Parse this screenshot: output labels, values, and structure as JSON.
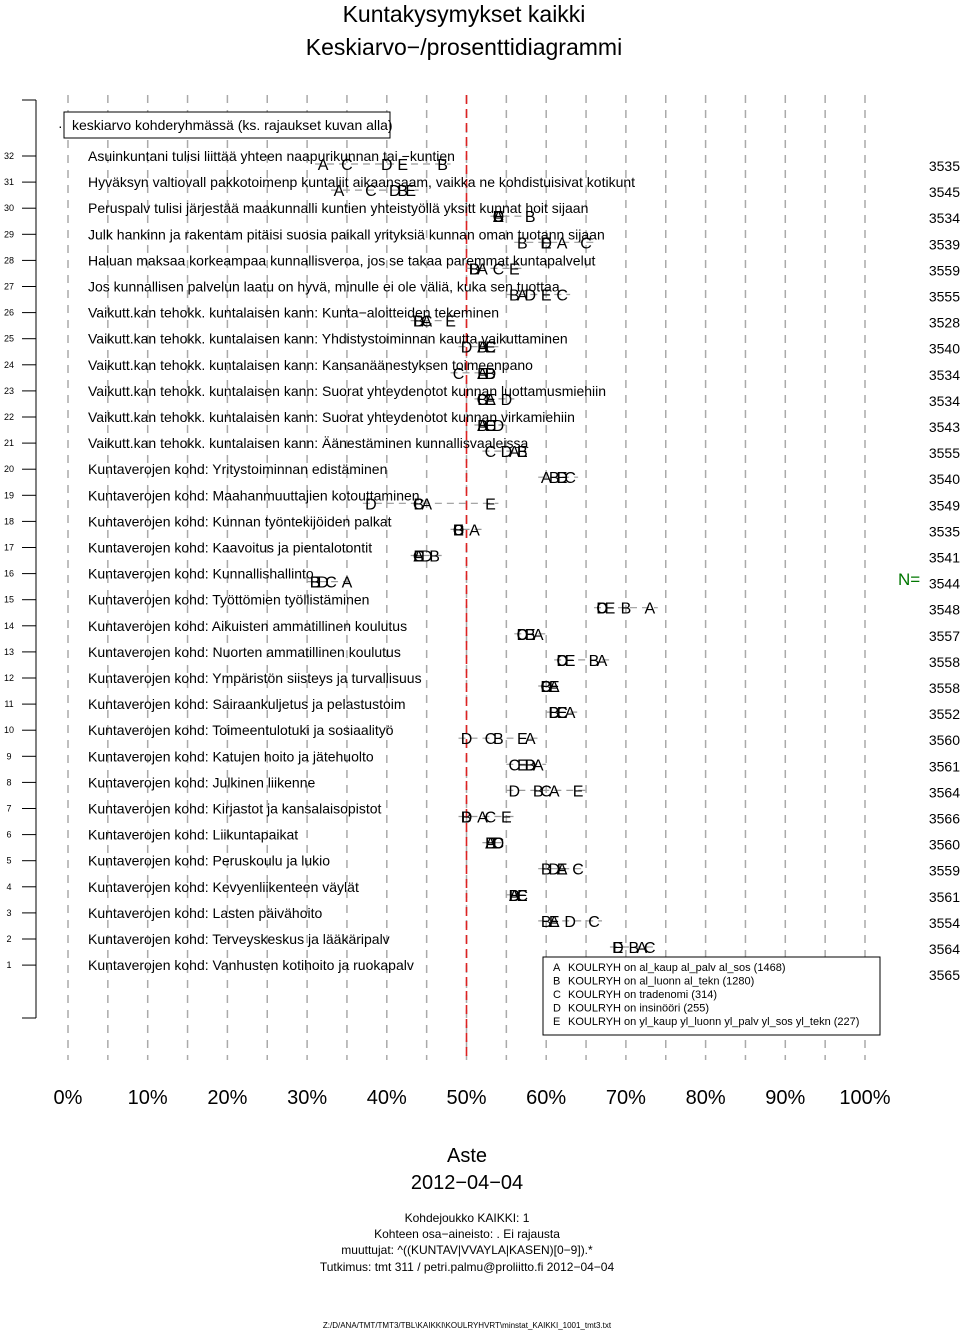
{
  "title": [
    "Kuntakysymykset kaikki",
    "Keskiarvo−/prosenttidiagrammi"
  ],
  "note": "keskiarvo kohderyhmässä (ks. rajaukset kuvan alla)",
  "note_marker": "·",
  "n_label": "N=",
  "colors": {
    "midline": "#dd2222",
    "n_label": "#007700",
    "grid": "#aaaaaa",
    "series_line": "#999999"
  },
  "x_ticks": [
    "0%",
    "10%",
    "20%",
    "30%",
    "40%",
    "50%",
    "60%",
    "70%",
    "80%",
    "90%",
    "100%"
  ],
  "xlabel": [
    "Aste",
    "2012−04−04"
  ],
  "footer": [
    "Kohdejoukko KAIKKI: 1",
    "Kohteen osa−aineisto: . Ei rajausta",
    "muuttujat: ^((KUNTAV|VVAYLA|KASEN)[0−9]).*",
    "Tutkimus: tmt 311 / petri.palmu@proliitto.fi 2012−04−04"
  ],
  "filepath": "Z:/D/ANA/TMT/TMT3/TBL\\KAIKKI\\KOULRYHVRT\\minstat_KAIKKI_1001_tmt3.txt",
  "chart_data": {
    "type": "scatter",
    "x_range": [
      0,
      100
    ],
    "x_unit": "%",
    "reference_line": 50,
    "legend_position": "bottom-right",
    "legend": [
      {
        "key": "A",
        "label": "KOULRYH on al_kaup al_palv al_sos (1468)"
      },
      {
        "key": "B",
        "label": "KOULRYH on al_luonn al_tekn (1280)"
      },
      {
        "key": "C",
        "label": "KOULRYH on tradenomi (314)"
      },
      {
        "key": "D",
        "label": "KOULRYH on insinööri (255)"
      },
      {
        "key": "E",
        "label": "KOULRYH on yl_kaup yl_luonn yl_palv yl_sos yl_tekn (227)"
      }
    ],
    "rows": [
      {
        "num": 32,
        "label": "Asuinkuntani tulisi liittää yhteen naapurikunnan tai −kuntien",
        "n": 3535,
        "A": 32,
        "B": 47,
        "C": 35,
        "D": 40,
        "E": 42
      },
      {
        "num": 31,
        "label": "Hyväksyn valtiovall pakkotoimenp kuntaliit aikaansaam, vaikka ne kohdistuisivat kotikunt",
        "n": 3545,
        "A": 34,
        "B": 42,
        "C": 38,
        "D": 41,
        "E": 43
      },
      {
        "num": 30,
        "label": "Peruspalv tulisi järjestää maakunnalli kuntien yhteistyöllä yksitt kunnat hoit sijaan",
        "n": 3534,
        "A": 54,
        "B": 58,
        "C": 54,
        "D": 54,
        "E": 54
      },
      {
        "num": 29,
        "label": "Julk hankinn ja rakentam pitäisi suosia paikall yrityksiä kunnan oman tuotann sijaan",
        "n": 3539,
        "A": 62,
        "B": 57,
        "C": 65,
        "D": 60,
        "E": 60
      },
      {
        "num": 28,
        "label": "Haluan maksaa korkeampaa kunnallisveroa, jos se takaa paremmat kuntapalvelut",
        "n": 3559,
        "A": 52,
        "B": 51,
        "C": 54,
        "D": 51,
        "E": 56
      },
      {
        "num": 27,
        "label": "Jos kunnallisen palvelun laatu on hyvä, minulle ei ole väliä, kuka sen tuottaa",
        "n": 3555,
        "A": 57,
        "B": 56,
        "C": 62,
        "D": 58,
        "E": 60
      },
      {
        "num": 26,
        "label": "Vaikutt.kan tehokk. kuntalaisen kann: Kunta−aloitteiden tekeminen",
        "n": 3528,
        "A": 45,
        "B": 44,
        "C": 45,
        "D": 44,
        "E": 48
      },
      {
        "num": 25,
        "label": "Vaikutt.kan tehokk. kuntalaisen kann: Yhdistystoiminnan kautta vaikuttaminen",
        "n": 3540,
        "A": 52,
        "B": 52,
        "C": 53,
        "D": 50,
        "E": 53
      },
      {
        "num": 24,
        "label": "Vaikutt.kan tehokk. kuntalaisen kann: Kansanäänestyksen toimeenpano",
        "n": 3534,
        "A": 52,
        "B": 53,
        "C": 49,
        "D": 53,
        "E": 52
      },
      {
        "num": 23,
        "label": "Vaikutt.kan tehokk. kuntalaisen kann: Suorat yhteydenotot kunnan luottamusmiehiin",
        "n": 3534,
        "A": 53,
        "B": 52,
        "C": 52,
        "D": 55,
        "E": 53
      },
      {
        "num": 22,
        "label": "Vaikutt.kan tehokk. kuntalaisen kann: Suorat yhteydenotot kunnan virkamiehiin",
        "n": 3543,
        "A": 52,
        "B": 52,
        "C": 53,
        "D": 54,
        "E": 53
      },
      {
        "num": 21,
        "label": "Vaikutt.kan tehokk. kuntalaisen kann: Äänestäminen kunnallisvaaleissa",
        "n": 3555,
        "A": 56,
        "B": 57,
        "C": 53,
        "D": 55,
        "E": 57
      },
      {
        "num": 20,
        "label": "Kuntaverojen kohd: Yritystoiminnan edistäminen",
        "n": 3540,
        "A": 60,
        "B": 61,
        "C": 63,
        "D": 62,
        "E": 62
      },
      {
        "num": 19,
        "label": "Kuntaverojen kohd: Maahanmuuttajien kotouttaminen",
        "n": 3549,
        "A": 45,
        "B": 44,
        "C": 44,
        "D": 38,
        "E": 53
      },
      {
        "num": 18,
        "label": "Kuntaverojen kohd: Kunnan työntekijöiden palkat",
        "n": 3535,
        "A": 51,
        "B": 49,
        "C": 49,
        "D": 49,
        "E": 49
      },
      {
        "num": 17,
        "label": "Kuntaverojen kohd: Kaavoitus ja pientalotontit",
        "n": 3541,
        "A": 44,
        "B": 46,
        "C": 44,
        "D": 45,
        "E": 44
      },
      {
        "num": 16,
        "label": "Kuntaverojen kohd: Kunnallishallinto",
        "n": 3544,
        "A": 35,
        "B": 31,
        "C": 33,
        "D": 32,
        "E": 31
      },
      {
        "num": 15,
        "label": "Kuntaverojen kohd: Työttömien työllistäminen",
        "n": 3548,
        "A": 73,
        "B": 70,
        "C": 67,
        "D": 67,
        "E": 68
      },
      {
        "num": 14,
        "label": "Kuntaverojen kohd: Aikuisten ammatillinen koulutus",
        "n": 3557,
        "A": 59,
        "B": 58,
        "C": 57,
        "D": 57,
        "E": 58
      },
      {
        "num": 13,
        "label": "Kuntaverojen kohd: Nuorten ammatillinen koulutus",
        "n": 3558,
        "A": 67,
        "B": 66,
        "C": 62,
        "D": 62,
        "E": 63
      },
      {
        "num": 12,
        "label": "Kuntaverojen kohd: Ympäristön siisteys ja turvallisuus",
        "n": 3558,
        "A": 61,
        "B": 60,
        "C": 60,
        "D": 60,
        "E": 61
      },
      {
        "num": 11,
        "label": "Kuntaverojen kohd: Sairaankuljetus ja pelastustoim",
        "n": 3552,
        "A": 63,
        "B": 61,
        "C": 62,
        "D": 61,
        "E": 62
      },
      {
        "num": 10,
        "label": "Kuntaverojen kohd: Toimeentulotuki ja sosiaalityö",
        "n": 3560,
        "A": 58,
        "B": 54,
        "C": 53,
        "D": 50,
        "E": 57
      },
      {
        "num": 9,
        "label": "Kuntaverojen kohd: Katujen hoito ja jätehuolto",
        "n": 3561,
        "A": 59,
        "B": 58,
        "C": 56,
        "D": 58,
        "E": 57
      },
      {
        "num": 8,
        "label": "Kuntaverojen kohd: Julkinen liikenne",
        "n": 3564,
        "A": 61,
        "B": 59,
        "C": 60,
        "D": 56,
        "E": 64
      },
      {
        "num": 7,
        "label": "Kuntaverojen kohd: Kirjastot ja kansalaisopistot",
        "n": 3566,
        "A": 52,
        "B": 50,
        "C": 53,
        "D": 50,
        "E": 55
      },
      {
        "num": 6,
        "label": "Kuntaverojen kohd: Liikuntapaikat",
        "n": 3560,
        "A": 53,
        "B": 53,
        "C": 54,
        "D": 54,
        "E": 53
      },
      {
        "num": 5,
        "label": "Kuntaverojen kohd: Peruskoulu ja lukio",
        "n": 3559,
        "A": 62,
        "B": 60,
        "C": 64,
        "D": 61,
        "E": 62
      },
      {
        "num": 4,
        "label": "Kuntaverojen kohd: Kevyenliikenteen väylät",
        "n": 3561,
        "A": 56,
        "B": 56,
        "C": 57,
        "D": 56,
        "E": 57
      },
      {
        "num": 3,
        "label": "Kuntaverojen kohd: Lasten päivähoito",
        "n": 3554,
        "A": 61,
        "B": 60,
        "C": 66,
        "D": 63,
        "E": 61
      },
      {
        "num": 2,
        "label": "Kuntaverojen kohd: Terveyskeskus ja lääkäripalv",
        "n": 3564,
        "A": 72,
        "B": 71,
        "C": 73,
        "D": 69,
        "E": 69
      },
      {
        "num": 1,
        "label": "Kuntaverojen kohd: Vanhusten kotihoito ja ruokapalv",
        "n": 3565,
        "A": 74,
        "B": 71,
        "C": 72,
        "D": 72,
        "E": 73
      }
    ]
  }
}
